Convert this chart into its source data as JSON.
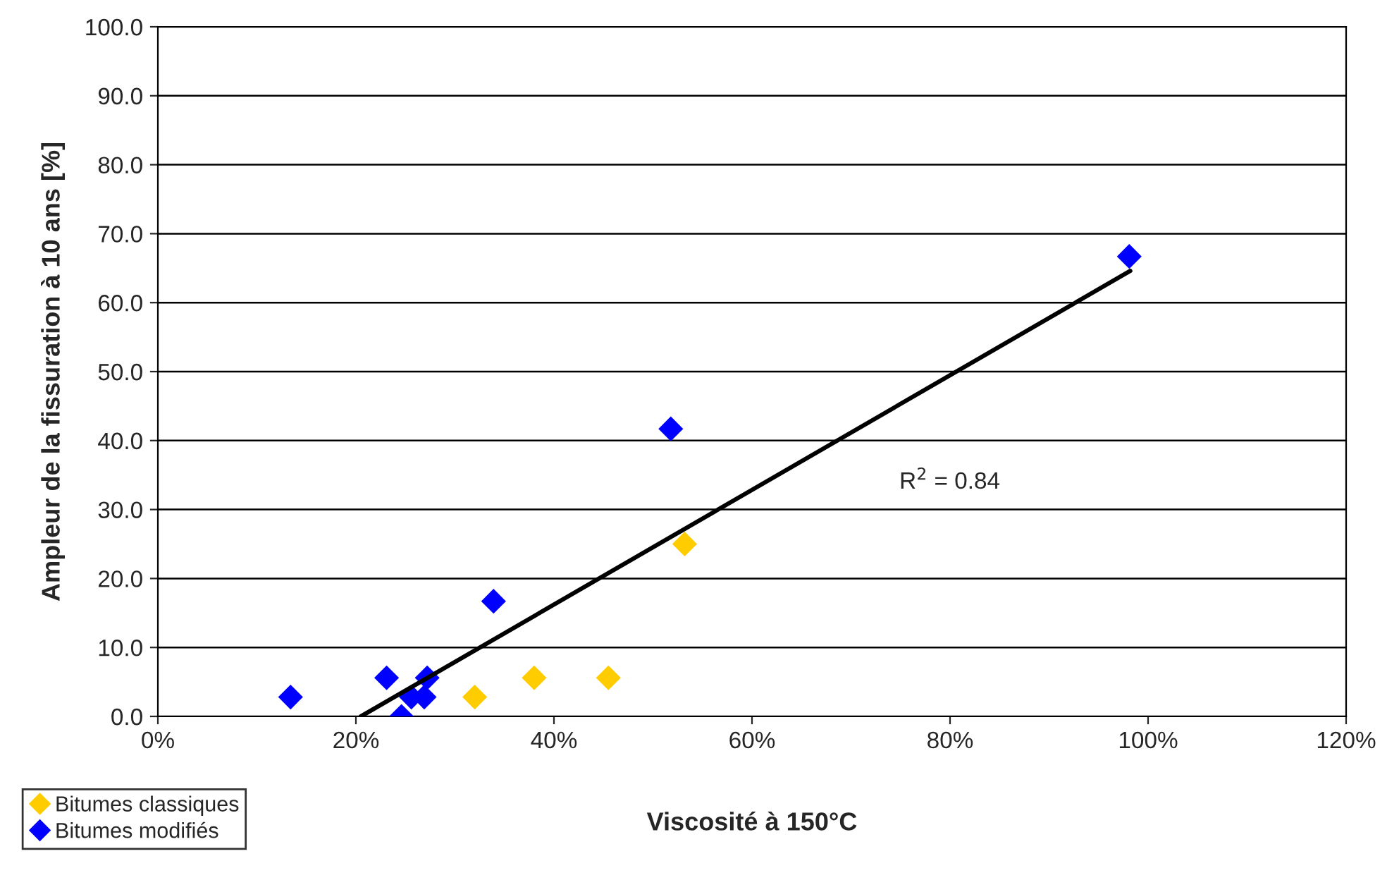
{
  "chart_data": {
    "type": "scatter",
    "xlabel": "Viscosité à 150°C",
    "ylabel": "Ampleur de la fissuration à 10 ans [%]",
    "xlim": [
      0,
      1.2
    ],
    "xticks": [
      {
        "value": 0,
        "label": "0%"
      },
      {
        "value": 0.2,
        "label": "20%"
      },
      {
        "value": 0.4,
        "label": "40%"
      },
      {
        "value": 0.6,
        "label": "60%"
      },
      {
        "value": 0.8,
        "label": "80%"
      },
      {
        "value": 1.0,
        "label": "100%"
      },
      {
        "value": 1.2,
        "label": "120%"
      }
    ],
    "ylim": [
      0,
      100
    ],
    "yticks": [
      {
        "value": 0,
        "label": "0.0"
      },
      {
        "value": 10,
        "label": "10.0"
      },
      {
        "value": 20,
        "label": "20.0"
      },
      {
        "value": 30,
        "label": "30.0"
      },
      {
        "value": 40,
        "label": "40.0"
      },
      {
        "value": 50,
        "label": "50.0"
      },
      {
        "value": 60,
        "label": "60.0"
      },
      {
        "value": 70,
        "label": "70.0"
      },
      {
        "value": 80,
        "label": "80.0"
      },
      {
        "value": 90,
        "label": "90.0"
      },
      {
        "value": 100,
        "label": "100.0"
      }
    ],
    "grid": "y",
    "legend": "bottom left",
    "marker": "diamond",
    "series": [
      {
        "name": "Bitumes classiques",
        "color": "#ffcc00",
        "x": [
          0.32,
          0.38,
          0.455,
          0.532
        ],
        "values": [
          2.8,
          5.6,
          5.6,
          25.0
        ]
      },
      {
        "name": "Bitumes modifiés",
        "color": "#0000ff",
        "x": [
          0.134,
          0.231,
          0.272,
          0.256,
          0.269,
          0.246,
          0.339,
          0.518,
          0.981
        ],
        "values": [
          2.8,
          5.6,
          5.6,
          2.8,
          2.8,
          0.0,
          16.7,
          41.7,
          66.7
        ]
      },
      {
        "type": "line",
        "marker": "none",
        "color": "#000000",
        "x": [
          0.205,
          0.982
        ],
        "values": [
          0,
          64.6
        ]
      }
    ],
    "annotations": [
      "R$^{2}$ = 0.84"
    ]
  }
}
